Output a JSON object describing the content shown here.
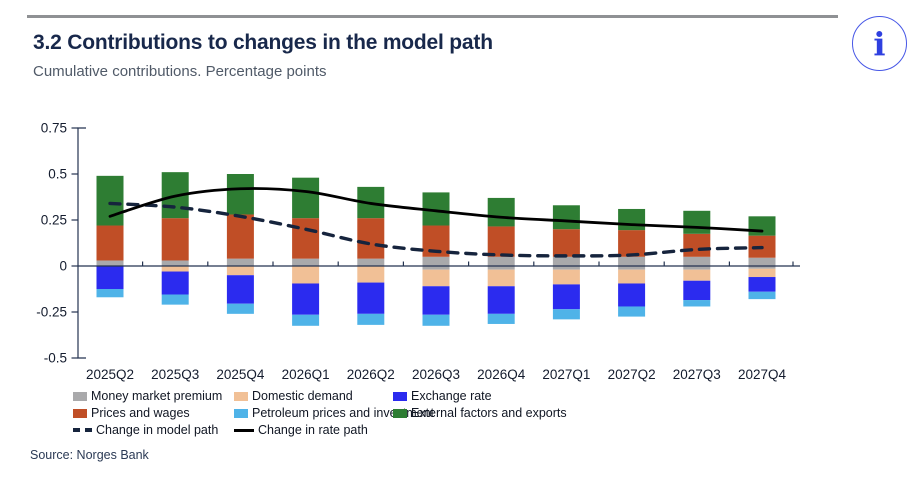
{
  "header": {
    "title": "3.2 Contributions to changes in the model path",
    "subtitle": "Cumulative contributions. Percentage points",
    "info_icon_label": "i"
  },
  "source": "Source: Norges Bank",
  "chart_data": {
    "type": "bar",
    "subtype": "stacked-bars-with-lines",
    "title": "3.2 Contributions to changes in the model path",
    "ylabel": "Percentage points (cumulative contributions)",
    "ylim": [
      -0.5,
      0.75
    ],
    "grid": false,
    "legend_position": "bottom",
    "y_ticks": [
      "0.75",
      "0.5",
      "0.25",
      "0",
      "-0.25",
      "-0.5"
    ],
    "y_tick_values": [
      0.75,
      0.5,
      0.25,
      0,
      -0.25,
      -0.5
    ],
    "categories": [
      "2025Q2",
      "2025Q3",
      "2025Q4",
      "2026Q1",
      "2026Q2",
      "2026Q3",
      "2026Q4",
      "2027Q1",
      "2027Q2",
      "2027Q3",
      "2027Q4"
    ],
    "series": [
      {
        "name": "Money market premium",
        "color": "#a9a9ab",
        "spans": [
          [
            0.03,
            0
          ],
          [
            0.03,
            0
          ],
          [
            0.04,
            0
          ],
          [
            0.04,
            0
          ],
          [
            0.04,
            0
          ],
          [
            0.05,
            -0.02
          ],
          [
            0.05,
            -0.02
          ],
          [
            0.05,
            -0.02
          ],
          [
            0.05,
            -0.02
          ],
          [
            0.05,
            -0.02
          ],
          [
            0.045,
            -0.015
          ]
        ]
      },
      {
        "name": "Prices and wages",
        "color": "#c04e26",
        "spans": [
          [
            0.22,
            0.03
          ],
          [
            0.26,
            0.03
          ],
          [
            0.28,
            0.04
          ],
          [
            0.26,
            0.04
          ],
          [
            0.26,
            0.04
          ],
          [
            0.22,
            0.05
          ],
          [
            0.215,
            0.05
          ],
          [
            0.2,
            0.05
          ],
          [
            0.195,
            0.05
          ],
          [
            0.175,
            0.05
          ],
          [
            0.165,
            0.045
          ]
        ]
      },
      {
        "name": "External factors and exports",
        "color": "#2e7d33",
        "spans": [
          [
            0.49,
            0.22
          ],
          [
            0.51,
            0.26
          ],
          [
            0.5,
            0.28
          ],
          [
            0.48,
            0.26
          ],
          [
            0.43,
            0.26
          ],
          [
            0.4,
            0.22
          ],
          [
            0.37,
            0.215
          ],
          [
            0.33,
            0.2
          ],
          [
            0.31,
            0.195
          ],
          [
            0.3,
            0.175
          ],
          [
            0.27,
            0.165
          ]
        ]
      },
      {
        "name": "Domestic demand",
        "color": "#f1c096",
        "spans": [
          [
            0,
            0
          ],
          [
            0,
            -0.03
          ],
          [
            0,
            -0.05
          ],
          [
            0,
            -0.095
          ],
          [
            0,
            -0.09
          ],
          [
            -0.02,
            -0.11
          ],
          [
            -0.02,
            -0.11
          ],
          [
            -0.02,
            -0.1
          ],
          [
            -0.02,
            -0.095
          ],
          [
            -0.02,
            -0.08
          ],
          [
            -0.015,
            -0.06
          ]
        ]
      },
      {
        "name": "Exchange rate",
        "color": "#2b2bef",
        "spans": [
          [
            0,
            -0.125
          ],
          [
            -0.03,
            -0.155
          ],
          [
            -0.05,
            -0.205
          ],
          [
            -0.095,
            -0.265
          ],
          [
            -0.09,
            -0.26
          ],
          [
            -0.11,
            -0.265
          ],
          [
            -0.11,
            -0.26
          ],
          [
            -0.1,
            -0.235
          ],
          [
            -0.095,
            -0.22
          ],
          [
            -0.08,
            -0.185
          ],
          [
            -0.06,
            -0.14
          ]
        ]
      },
      {
        "name": "Petroleum prices and investment",
        "color": "#4fb3e8",
        "spans": [
          [
            -0.125,
            -0.17
          ],
          [
            -0.155,
            -0.21
          ],
          [
            -0.205,
            -0.26
          ],
          [
            -0.265,
            -0.325
          ],
          [
            -0.26,
            -0.32
          ],
          [
            -0.265,
            -0.325
          ],
          [
            -0.26,
            -0.315
          ],
          [
            -0.235,
            -0.29
          ],
          [
            -0.22,
            -0.275
          ],
          [
            -0.185,
            -0.22
          ],
          [
            -0.14,
            -0.18
          ]
        ]
      }
    ],
    "lines": [
      {
        "name": "Change in model path",
        "style": "dashed",
        "color": "#16243d",
        "values": [
          0.34,
          0.32,
          0.27,
          0.2,
          0.12,
          0.08,
          0.06,
          0.055,
          0.06,
          0.09,
          0.1
        ]
      },
      {
        "name": "Change in rate path",
        "style": "solid",
        "color": "#000000",
        "values": [
          0.27,
          0.38,
          0.42,
          0.405,
          0.34,
          0.3,
          0.265,
          0.245,
          0.225,
          0.21,
          0.19
        ]
      }
    ]
  },
  "legend": {
    "entries": [
      {
        "name": "Money market premium",
        "marker": "rect",
        "color": "#a9a9ab"
      },
      {
        "name": "Domestic demand",
        "marker": "rect",
        "color": "#f1c096"
      },
      {
        "name": "Exchange rate",
        "marker": "rect",
        "color": "#2b2bef"
      },
      {
        "name": "Prices and wages",
        "marker": "rect",
        "color": "#c04e26"
      },
      {
        "name": "Petroleum prices and investment",
        "marker": "rect",
        "color": "#4fb3e8"
      },
      {
        "name": "External factors and exports",
        "marker": "rect",
        "color": "#2e7d33"
      },
      {
        "name": "Change in model path",
        "marker": "dashed-line",
        "color": "#16243d"
      },
      {
        "name": "Change in rate path",
        "marker": "solid-line",
        "color": "#000000"
      }
    ]
  },
  "style": {
    "accent_blue": "#2f40e0",
    "axis_color": "#243350",
    "tick_label_color": "#141c2e",
    "title_color": "#18284b",
    "subtitle_color": "#505a68",
    "top_rule_color": "#8f9194"
  }
}
